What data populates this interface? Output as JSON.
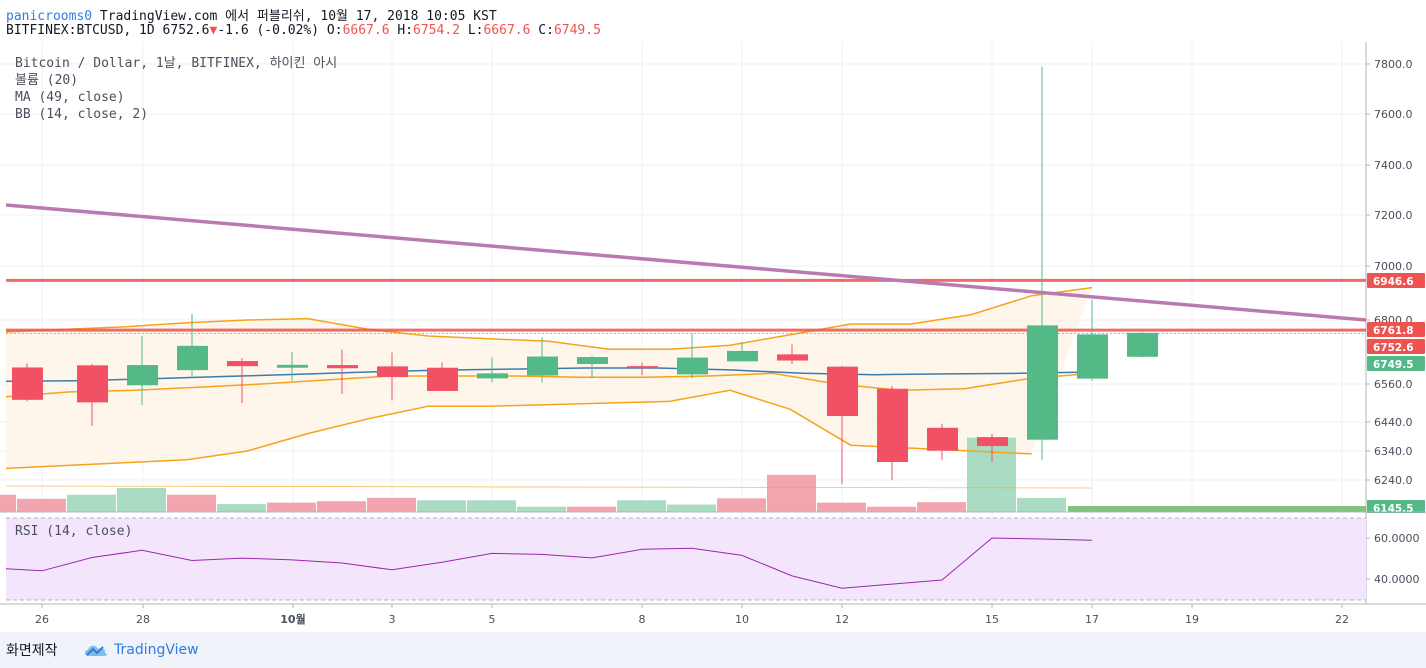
{
  "header": {
    "user": "panicrooms0",
    "published": " TradingView.com 에서 퍼블리쉬, 10월 17, 2018 10:05 KST",
    "symbol": "BITFINEX:BTCUSD, 1D",
    "last": "6752.6",
    "down_arrow": "▼",
    "change": "-1.6 (-0.02%)",
    "o_label": "O:",
    "o": "6667.6",
    "h_label": "H:",
    "h": "6754.2",
    "l_label": "L:",
    "l": "6667.6",
    "c_label": "C:",
    "c": "6749.5"
  },
  "legend": {
    "title": "Bitcoin / Dollar, 1날, BITFINEX, 하이킨 아시",
    "volume": "볼륨 (20)",
    "ma": "MA (49, close)",
    "bb": "BB (14, close, 2)",
    "rsi": "RSI (14, close)"
  },
  "footer": {
    "made_with": "화면제작",
    "brand": "TradingView"
  },
  "colors": {
    "up": "#53b987",
    "down": "#f25065",
    "bb_band": "#f7a21b",
    "ma": "#3a7cae",
    "trendline": "#b97ab1",
    "hline": "#ef5350",
    "rsi_line": "#9c27b0",
    "rsi_bg": "#f3e5fb"
  },
  "chart_data": {
    "type": "candlestick",
    "style": "heikin-ashi",
    "x_ticks": [
      "26",
      "28",
      "10월",
      "3",
      "5",
      "8",
      "10",
      "12",
      "15",
      "17",
      "19",
      "22"
    ],
    "y_ticks": [
      "7800.0",
      "7600.0",
      "7400.0",
      "7200.0",
      "7000.0",
      "6800.0",
      "6560.0",
      "6440.0",
      "6340.0",
      "6240.0"
    ],
    "price_tags": [
      {
        "label": "6946.6",
        "value": 6946.6,
        "color": "#ef5350"
      },
      {
        "label": "6761.8",
        "value": 6761.8,
        "color": "#ef5350"
      },
      {
        "label": "6752.6",
        "value": 6752.6,
        "color": "#ef5350"
      },
      {
        "label": "6749.5",
        "value": 6749.5,
        "color": "#53b987"
      },
      {
        "label": "6145.5",
        "value": 6145.5,
        "color": "#53b987"
      }
    ],
    "candles": [
      {
        "i": 0,
        "o": 6622,
        "h": 6638,
        "l": 6505,
        "c": 6510
      },
      {
        "i": 1,
        "o": 6630,
        "h": 6635,
        "l": 6426,
        "c": 6502
      },
      {
        "i": 2,
        "o": 6556,
        "h": 6740,
        "l": 6494,
        "c": 6631
      },
      {
        "i": 3,
        "o": 6612,
        "h": 6822,
        "l": 6581,
        "c": 6703
      },
      {
        "i": 4,
        "o": 6646,
        "h": 6657,
        "l": 6500,
        "c": 6627
      },
      {
        "i": 5,
        "o": 6621,
        "h": 6680,
        "l": 6572,
        "c": 6632
      },
      {
        "i": 6,
        "o": 6631,
        "h": 6690,
        "l": 6529,
        "c": 6619
      },
      {
        "i": 7,
        "o": 6626,
        "h": 6678,
        "l": 6508,
        "c": 6586
      },
      {
        "i": 8,
        "o": 6621,
        "h": 6641,
        "l": 6547,
        "c": 6538
      },
      {
        "i": 9,
        "o": 6581,
        "h": 6660,
        "l": 6566,
        "c": 6600
      },
      {
        "i": 10,
        "o": 6592,
        "h": 6735,
        "l": 6566,
        "c": 6663
      },
      {
        "i": 11,
        "o": 6635,
        "h": 6665,
        "l": 6585,
        "c": 6661
      },
      {
        "i": 12,
        "o": 6627,
        "h": 6640,
        "l": 6593,
        "c": 6621
      },
      {
        "i": 13,
        "o": 6596,
        "h": 6751,
        "l": 6582,
        "c": 6659
      },
      {
        "i": 14,
        "o": 6645,
        "h": 6717,
        "l": 6653,
        "c": 6684
      },
      {
        "i": 15,
        "o": 6671,
        "h": 6708,
        "l": 6635,
        "c": 6648
      },
      {
        "i": 16,
        "o": 6625,
        "h": 6628,
        "l": 6226,
        "c": 6459
      },
      {
        "i": 17,
        "o": 6545,
        "h": 6554,
        "l": 6239,
        "c": 6302
      },
      {
        "i": 18,
        "o": 6420,
        "h": 6434,
        "l": 6310,
        "c": 6341
      },
      {
        "i": 19,
        "o": 6388,
        "h": 6398,
        "l": 6304,
        "c": 6357
      },
      {
        "i": 20,
        "o": 6379,
        "h": 7789,
        "l": 6309,
        "c": 6780
      },
      {
        "i": 21,
        "o": 6580,
        "h": 6875,
        "l": 6572,
        "c": 6746
      },
      {
        "i": 22,
        "o": 6662,
        "h": 6754,
        "l": 6660,
        "c": 6752
      }
    ],
    "volume": [
      {
        "i": -1,
        "v": 0.72,
        "up": false
      },
      {
        "i": 0,
        "v": 0.55,
        "up": false
      },
      {
        "i": 1,
        "v": 0.72,
        "up": true
      },
      {
        "i": 2,
        "v": 1.0,
        "up": true
      },
      {
        "i": 3,
        "v": 0.72,
        "up": false
      },
      {
        "i": 4,
        "v": 0.33,
        "up": true
      },
      {
        "i": 5,
        "v": 0.39,
        "up": false
      },
      {
        "i": 6,
        "v": 0.45,
        "up": false
      },
      {
        "i": 7,
        "v": 0.59,
        "up": false
      },
      {
        "i": 8,
        "v": 0.49,
        "up": true
      },
      {
        "i": 9,
        "v": 0.49,
        "up": true
      },
      {
        "i": 10,
        "v": 0.22,
        "up": true
      },
      {
        "i": 11,
        "v": 0.22,
        "up": false
      },
      {
        "i": 12,
        "v": 0.49,
        "up": true
      },
      {
        "i": 13,
        "v": 0.31,
        "up": true
      },
      {
        "i": 14,
        "v": 0.57,
        "up": false
      },
      {
        "i": 15,
        "v": 1.55,
        "up": false
      },
      {
        "i": 16,
        "v": 0.39,
        "up": false
      },
      {
        "i": 17,
        "v": 0.22,
        "up": false
      },
      {
        "i": 18,
        "v": 0.41,
        "up": false
      },
      {
        "i": 19,
        "v": 3.1,
        "up": true
      },
      {
        "i": 20,
        "v": 0.59,
        "up": true
      }
    ],
    "bb_upper": [
      6755,
      6765,
      6775,
      6790,
      6800,
      6805,
      6765,
      6740,
      6730,
      6720,
      6690,
      6690,
      6705,
      6745,
      6785,
      6785,
      6820,
      6890,
      6920
    ],
    "bb_middle": [
      6520,
      6535,
      6540,
      6550,
      6560,
      6575,
      6590,
      6590,
      6590,
      6585,
      6585,
      6590,
      6600,
      6560,
      6540,
      6545,
      6580,
      6600
    ],
    "bb_lower": [
      6280,
      6290,
      6300,
      6310,
      6340,
      6400,
      6450,
      6490,
      6490,
      6495,
      6500,
      6505,
      6540,
      6480,
      6360,
      6350,
      6340,
      6330
    ],
    "ma": [
      6570,
      6572,
      6580,
      6588,
      6596,
      6605,
      6612,
      6616,
      6620,
      6620,
      6613,
      6600,
      6595,
      6598,
      6600,
      6605
    ],
    "rsi": [
      45.0,
      44.0,
      50.5,
      54.0,
      49.0,
      50.2,
      49.3,
      47.8,
      44.5,
      48.2,
      52.5,
      52.0,
      50.3,
      54.5,
      55.0,
      51.5,
      41.5,
      35.5,
      37.5,
      39.5,
      60.0,
      59.5,
      58.9
    ],
    "rsi_ticks": [
      "60.0000",
      "40.0000"
    ],
    "hlines": [
      6946.6,
      6761.8
    ],
    "trendline": {
      "from": 7240,
      "to": 6800
    }
  }
}
